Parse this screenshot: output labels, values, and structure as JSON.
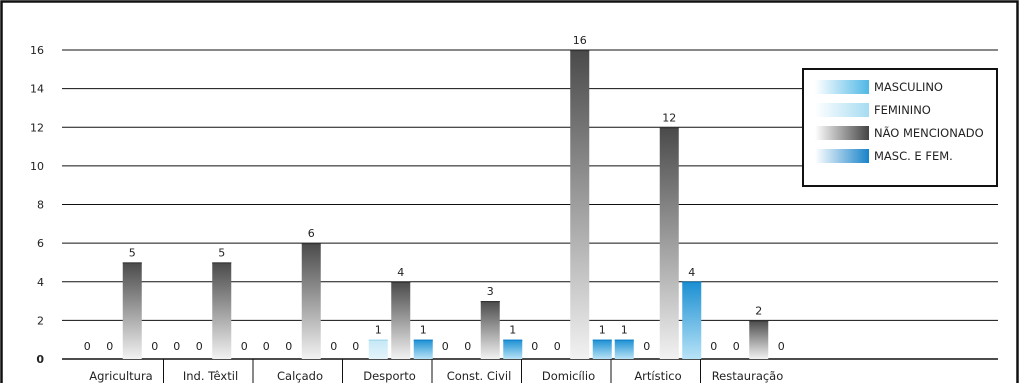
{
  "chart_data": {
    "type": "bar",
    "title": "",
    "xlabel": "",
    "ylabel": "",
    "ylim": [
      0,
      16
    ],
    "yticks": [
      0,
      2,
      4,
      6,
      8,
      10,
      12,
      14,
      16
    ],
    "grid": true,
    "legend_position": "top-right",
    "categories": [
      "Agricultura",
      "Ind. Têxtil",
      "Calçado",
      "Desporto",
      "Const. Civil",
      "Domicílio",
      "Artístico",
      "Restauração"
    ],
    "series": [
      {
        "name": "MASCULINO",
        "color": "#5bbfe8",
        "values": [
          0,
          0,
          0,
          0,
          0,
          0,
          1,
          0
        ]
      },
      {
        "name": "FEMININO",
        "color": "#a9ddf2",
        "values": [
          0,
          0,
          0,
          1,
          0,
          0,
          0,
          0
        ]
      },
      {
        "name": "NÃO MENCIONADO",
        "color": "#555555",
        "values": [
          5,
          5,
          6,
          4,
          3,
          16,
          12,
          2
        ]
      },
      {
        "name": "MASC. E FEM.",
        "color": "#1f8fd0",
        "values": [
          0,
          0,
          0,
          1,
          1,
          1,
          4,
          0
        ]
      }
    ]
  }
}
